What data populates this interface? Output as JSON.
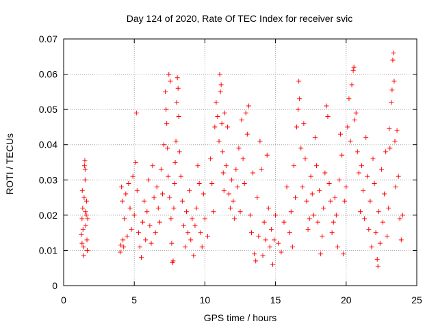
{
  "chart_data": {
    "type": "scatter",
    "title": "Day 124 of 2020, Rate Of TEC Index for receiver svic",
    "xlabel": "GPS time / hours",
    "ylabel": "ROTI / TECUs",
    "xlim": [
      0,
      25
    ],
    "ylim": [
      0,
      0.07
    ],
    "xticks": [
      0,
      5,
      10,
      15,
      20,
      25
    ],
    "xtick_labels": [
      "0",
      "5",
      "10",
      "15",
      "20",
      "25"
    ],
    "yticks": [
      0,
      0.01,
      0.02,
      0.03,
      0.04,
      0.05,
      0.06,
      0.07
    ],
    "ytick_labels": [
      "0",
      "0.01",
      "0.02",
      "0.03",
      "0.04",
      "0.05",
      "0.06",
      "0.07"
    ],
    "grid": true,
    "marker": "plus",
    "color": "#ff0000",
    "points": [
      [
        1.25,
        0.0145
      ],
      [
        1.3,
        0.019
      ],
      [
        1.32,
        0.027
      ],
      [
        1.35,
        0.022
      ],
      [
        1.37,
        0.016
      ],
      [
        1.4,
        0.011
      ],
      [
        1.42,
        0.0085
      ],
      [
        1.45,
        0.025
      ],
      [
        1.47,
        0.034
      ],
      [
        1.5,
        0.0355
      ],
      [
        1.52,
        0.03
      ],
      [
        1.55,
        0.021
      ],
      [
        1.57,
        0.017
      ],
      [
        1.6,
        0.02
      ],
      [
        1.62,
        0.024
      ],
      [
        1.65,
        0.013
      ],
      [
        1.67,
        0.01
      ],
      [
        1.7,
        0.019
      ],
      [
        1.52,
        0.033
      ],
      [
        1.3,
        0.012
      ],
      [
        4.0,
        0.0095
      ],
      [
        4.05,
        0.0115
      ],
      [
        4.1,
        0.028
      ],
      [
        4.15,
        0.024
      ],
      [
        4.2,
        0.013
      ],
      [
        4.25,
        0.011
      ],
      [
        4.3,
        0.019
      ],
      [
        4.4,
        0.026
      ],
      [
        4.5,
        0.014
      ],
      [
        4.6,
        0.029
      ],
      [
        4.7,
        0.022
      ],
      [
        4.8,
        0.016
      ],
      [
        4.9,
        0.031
      ],
      [
        5.0,
        0.02
      ],
      [
        5.1,
        0.035
      ],
      [
        5.15,
        0.049
      ],
      [
        5.2,
        0.027
      ],
      [
        5.3,
        0.015
      ],
      [
        5.4,
        0.011
      ],
      [
        5.5,
        0.008
      ],
      [
        5.6,
        0.018
      ],
      [
        5.7,
        0.024
      ],
      [
        5.8,
        0.013
      ],
      [
        5.9,
        0.021
      ],
      [
        6.0,
        0.03
      ],
      [
        6.1,
        0.017
      ],
      [
        6.2,
        0.012
      ],
      [
        6.3,
        0.034
      ],
      [
        6.4,
        0.025
      ],
      [
        6.5,
        0.015
      ],
      [
        6.6,
        0.028
      ],
      [
        6.7,
        0.022
      ],
      [
        6.8,
        0.018
      ],
      [
        6.9,
        0.033
      ],
      [
        7.0,
        0.026
      ],
      [
        7.1,
        0.04
      ],
      [
        7.2,
        0.055
      ],
      [
        7.25,
        0.05
      ],
      [
        7.3,
        0.046
      ],
      [
        7.35,
        0.039
      ],
      [
        7.4,
        0.031
      ],
      [
        7.45,
        0.06
      ],
      [
        7.5,
        0.025
      ],
      [
        7.55,
        0.058
      ],
      [
        7.6,
        0.019
      ],
      [
        7.65,
        0.012
      ],
      [
        7.7,
        0.0065
      ],
      [
        7.75,
        0.007
      ],
      [
        7.8,
        0.022
      ],
      [
        7.85,
        0.029
      ],
      [
        7.9,
        0.035
      ],
      [
        7.95,
        0.041
      ],
      [
        8.0,
        0.052
      ],
      [
        8.05,
        0.059
      ],
      [
        8.1,
        0.056
      ],
      [
        8.15,
        0.048
      ],
      [
        8.2,
        0.038
      ],
      [
        8.3,
        0.031
      ],
      [
        8.4,
        0.024
      ],
      [
        8.5,
        0.017
      ],
      [
        8.6,
        0.011
      ],
      [
        8.7,
        0.021
      ],
      [
        8.8,
        0.015
      ],
      [
        8.9,
        0.027
      ],
      [
        9.0,
        0.013
      ],
      [
        9.1,
        0.019
      ],
      [
        9.2,
        0.0085
      ],
      [
        9.3,
        0.017
      ],
      [
        9.4,
        0.022
      ],
      [
        9.5,
        0.034
      ],
      [
        9.6,
        0.029
      ],
      [
        9.7,
        0.015
      ],
      [
        9.8,
        0.011
      ],
      [
        9.9,
        0.026
      ],
      [
        10.0,
        0.019
      ],
      [
        10.2,
        0.014
      ],
      [
        10.4,
        0.036
      ],
      [
        10.5,
        0.029
      ],
      [
        10.6,
        0.021
      ],
      [
        10.7,
        0.045
      ],
      [
        10.8,
        0.052
      ],
      [
        10.9,
        0.048
      ],
      [
        11.0,
        0.041
      ],
      [
        11.05,
        0.06
      ],
      [
        11.1,
        0.055
      ],
      [
        11.15,
        0.057
      ],
      [
        11.2,
        0.046
      ],
      [
        11.25,
        0.038
      ],
      [
        11.3,
        0.032
      ],
      [
        11.35,
        0.027
      ],
      [
        11.4,
        0.049
      ],
      [
        11.5,
        0.034
      ],
      [
        11.6,
        0.045
      ],
      [
        11.7,
        0.026
      ],
      [
        11.8,
        0.022
      ],
      [
        11.9,
        0.03
      ],
      [
        12.0,
        0.024
      ],
      [
        12.1,
        0.019
      ],
      [
        12.2,
        0.033
      ],
      [
        12.3,
        0.028
      ],
      [
        12.4,
        0.039
      ],
      [
        12.5,
        0.021
      ],
      [
        12.6,
        0.047
      ],
      [
        12.7,
        0.036
      ],
      [
        12.8,
        0.029
      ],
      [
        12.9,
        0.049
      ],
      [
        13.0,
        0.043
      ],
      [
        13.1,
        0.051
      ],
      [
        13.2,
        0.02
      ],
      [
        13.3,
        0.015
      ],
      [
        13.4,
        0.032
      ],
      [
        13.5,
        0.009
      ],
      [
        13.6,
        0.007
      ],
      [
        13.7,
        0.025
      ],
      [
        13.8,
        0.014
      ],
      [
        13.9,
        0.041
      ],
      [
        14.0,
        0.033
      ],
      [
        14.1,
        0.0085
      ],
      [
        14.2,
        0.018
      ],
      [
        14.3,
        0.013
      ],
      [
        14.4,
        0.037
      ],
      [
        14.5,
        0.022
      ],
      [
        14.6,
        0.011
      ],
      [
        14.7,
        0.016
      ],
      [
        14.8,
        0.006
      ],
      [
        14.9,
        0.013
      ],
      [
        15.0,
        0.02
      ],
      [
        15.2,
        0.012
      ],
      [
        15.4,
        0.0095
      ],
      [
        15.6,
        0.018
      ],
      [
        15.8,
        0.028
      ],
      [
        16.0,
        0.015
      ],
      [
        16.1,
        0.021
      ],
      [
        16.2,
        0.011
      ],
      [
        16.3,
        0.034
      ],
      [
        16.4,
        0.025
      ],
      [
        16.5,
        0.045
      ],
      [
        16.6,
        0.05
      ],
      [
        16.65,
        0.058
      ],
      [
        16.7,
        0.053
      ],
      [
        16.8,
        0.039
      ],
      [
        16.9,
        0.028
      ],
      [
        17.0,
        0.046
      ],
      [
        17.1,
        0.036
      ],
      [
        17.2,
        0.024
      ],
      [
        17.3,
        0.016
      ],
      [
        17.4,
        0.019
      ],
      [
        17.5,
        0.031
      ],
      [
        17.6,
        0.026
      ],
      [
        17.7,
        0.02
      ],
      [
        17.8,
        0.042
      ],
      [
        17.9,
        0.034
      ],
      [
        18.0,
        0.018
      ],
      [
        18.1,
        0.027
      ],
      [
        18.2,
        0.009
      ],
      [
        18.3,
        0.014
      ],
      [
        18.4,
        0.022
      ],
      [
        18.5,
        0.032
      ],
      [
        18.6,
        0.051
      ],
      [
        18.7,
        0.048
      ],
      [
        18.8,
        0.029
      ],
      [
        18.9,
        0.024
      ],
      [
        19.0,
        0.015
      ],
      [
        19.1,
        0.018
      ],
      [
        19.2,
        0.025
      ],
      [
        19.3,
        0.02
      ],
      [
        19.4,
        0.011
      ],
      [
        19.5,
        0.03
      ],
      [
        19.6,
        0.043
      ],
      [
        19.7,
        0.037
      ],
      [
        19.8,
        0.009
      ],
      [
        19.9,
        0.024
      ],
      [
        20.0,
        0.028
      ],
      [
        20.1,
        0.045
      ],
      [
        20.2,
        0.053
      ],
      [
        20.3,
        0.041
      ],
      [
        20.4,
        0.057
      ],
      [
        20.5,
        0.061
      ],
      [
        20.55,
        0.062
      ],
      [
        20.6,
        0.047
      ],
      [
        20.7,
        0.049
      ],
      [
        20.8,
        0.038
      ],
      [
        20.9,
        0.032
      ],
      [
        21.0,
        0.021
      ],
      [
        21.1,
        0.034
      ],
      [
        21.2,
        0.027
      ],
      [
        21.3,
        0.019
      ],
      [
        21.4,
        0.042
      ],
      [
        21.5,
        0.031
      ],
      [
        21.6,
        0.016
      ],
      [
        21.7,
        0.024
      ],
      [
        21.8,
        0.011
      ],
      [
        21.9,
        0.036
      ],
      [
        22.0,
        0.029
      ],
      [
        22.1,
        0.015
      ],
      [
        22.2,
        0.0075
      ],
      [
        22.25,
        0.0055
      ],
      [
        22.3,
        0.021
      ],
      [
        22.4,
        0.012
      ],
      [
        22.5,
        0.033
      ],
      [
        22.6,
        0.018
      ],
      [
        22.7,
        0.026
      ],
      [
        22.8,
        0.038
      ],
      [
        22.9,
        0.014
      ],
      [
        23.0,
        0.022
      ],
      [
        23.05,
        0.0445
      ],
      [
        23.1,
        0.039
      ],
      [
        23.2,
        0.052
      ],
      [
        23.25,
        0.0555
      ],
      [
        23.3,
        0.064
      ],
      [
        23.35,
        0.066
      ],
      [
        23.4,
        0.058
      ],
      [
        23.45,
        0.041
      ],
      [
        23.5,
        0.028
      ],
      [
        23.6,
        0.044
      ],
      [
        23.7,
        0.031
      ],
      [
        23.8,
        0.019
      ],
      [
        23.9,
        0.013
      ],
      [
        24.0,
        0.02
      ]
    ]
  }
}
